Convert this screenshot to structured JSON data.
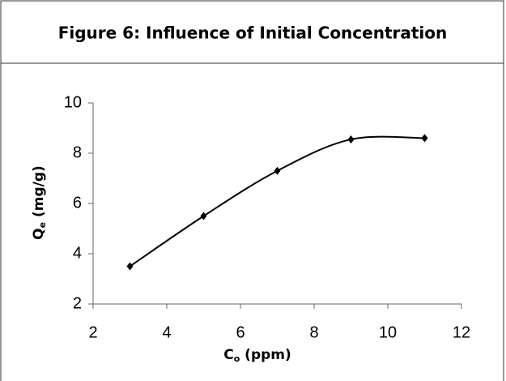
{
  "chart_data": {
    "type": "line",
    "title": "Figure 6: Influence of Initial Concentration",
    "xlabel_parts": [
      "C",
      "o",
      " (ppm)"
    ],
    "ylabel_parts": [
      "Q",
      "e",
      " (mg/g)"
    ],
    "x": [
      3,
      5,
      7,
      9,
      11
    ],
    "series": [
      {
        "color": "#000000",
        "values": [
          3.5,
          5.5,
          7.3,
          8.55,
          8.6
        ]
      }
    ],
    "xlim": [
      2,
      12
    ],
    "xticks": [
      2,
      4,
      6,
      8,
      10,
      12
    ],
    "ylim": [
      2,
      10
    ],
    "yticks": [
      2,
      4,
      6,
      8,
      10
    ],
    "grid": false,
    "smooth": true
  }
}
